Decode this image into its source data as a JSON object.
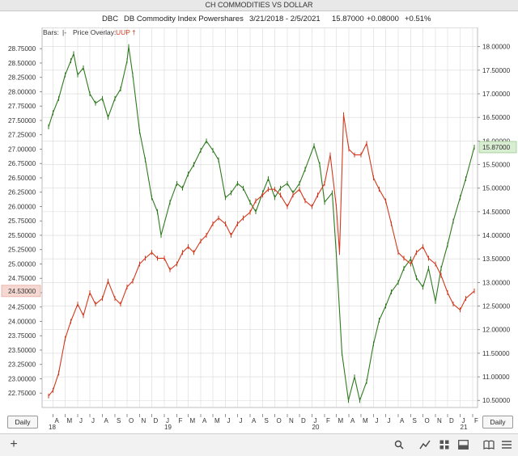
{
  "window": {
    "title": "CH COMMODITIES VS DOLLAR"
  },
  "header": {
    "symbol": "DBC",
    "name": "DB Commodity Index Powershares",
    "range": "3/21/2018 - 2/5/2021",
    "last": "15.87000",
    "change": "+0.08000",
    "pct": "+0.51%"
  },
  "legend": {
    "bars_label": "Bars:",
    "bars_glyph": "|-",
    "overlay_label": "Price Overlay:",
    "overlay_symbol": "UUP",
    "overlay_glyph": "†"
  },
  "controls": {
    "period_left": "Daily",
    "period_right": "Daily"
  },
  "colors": {
    "dbc": "#2f7a1f",
    "uup": "#d23a1e",
    "grid": "#d9d9d9"
  },
  "chart_data": {
    "type": "line",
    "x_start": "2018-03-21",
    "x_end": "2021-02-05",
    "series": [
      {
        "name": "DBC",
        "axis": "right",
        "points": [
          [
            "2018-03-21",
            16.3
          ],
          [
            "2018-04-01",
            16.6
          ],
          [
            "2018-04-15",
            16.9
          ],
          [
            "2018-05-01",
            17.4
          ],
          [
            "2018-05-15",
            17.7
          ],
          [
            "2018-05-22",
            17.85
          ],
          [
            "2018-06-01",
            17.4
          ],
          [
            "2018-06-15",
            17.55
          ],
          [
            "2018-07-01",
            17.0
          ],
          [
            "2018-07-15",
            16.8
          ],
          [
            "2018-08-01",
            16.9
          ],
          [
            "2018-08-15",
            16.5
          ],
          [
            "2018-09-01",
            16.9
          ],
          [
            "2018-09-15",
            17.1
          ],
          [
            "2018-10-01",
            17.7
          ],
          [
            "2018-10-05",
            18.0
          ],
          [
            "2018-10-15",
            17.4
          ],
          [
            "2018-11-01",
            16.2
          ],
          [
            "2018-11-15",
            15.6
          ],
          [
            "2018-12-01",
            14.8
          ],
          [
            "2018-12-15",
            14.5
          ],
          [
            "2018-12-24",
            14.0
          ],
          [
            "2019-01-15",
            14.7
          ],
          [
            "2019-02-01",
            15.1
          ],
          [
            "2019-02-15",
            15.0
          ],
          [
            "2019-03-01",
            15.3
          ],
          [
            "2019-03-15",
            15.5
          ],
          [
            "2019-04-01",
            15.8
          ],
          [
            "2019-04-15",
            16.0
          ],
          [
            "2019-05-01",
            15.8
          ],
          [
            "2019-05-15",
            15.6
          ],
          [
            "2019-06-01",
            14.8
          ],
          [
            "2019-06-15",
            14.9
          ],
          [
            "2019-07-01",
            15.1
          ],
          [
            "2019-07-15",
            15.0
          ],
          [
            "2019-08-01",
            14.7
          ],
          [
            "2019-08-15",
            14.5
          ],
          [
            "2019-09-01",
            14.9
          ],
          [
            "2019-09-15",
            15.2
          ],
          [
            "2019-10-01",
            14.8
          ],
          [
            "2019-10-15",
            15.0
          ],
          [
            "2019-11-01",
            15.1
          ],
          [
            "2019-11-15",
            14.9
          ],
          [
            "2019-12-01",
            15.1
          ],
          [
            "2019-12-15",
            15.4
          ],
          [
            "2020-01-06",
            15.9
          ],
          [
            "2020-01-20",
            15.5
          ],
          [
            "2020-02-01",
            14.7
          ],
          [
            "2020-02-20",
            14.9
          ],
          [
            "2020-03-01",
            13.6
          ],
          [
            "2020-03-15",
            11.5
          ],
          [
            "2020-03-31",
            10.5
          ],
          [
            "2020-04-15",
            11.0
          ],
          [
            "2020-04-28",
            10.5
          ],
          [
            "2020-05-15",
            10.9
          ],
          [
            "2020-06-01",
            11.7
          ],
          [
            "2020-06-15",
            12.2
          ],
          [
            "2020-07-01",
            12.5
          ],
          [
            "2020-07-15",
            12.8
          ],
          [
            "2020-08-01",
            13.0
          ],
          [
            "2020-08-15",
            13.3
          ],
          [
            "2020-09-01",
            13.5
          ],
          [
            "2020-09-15",
            13.1
          ],
          [
            "2020-10-01",
            12.9
          ],
          [
            "2020-10-15",
            13.3
          ],
          [
            "2020-11-01",
            12.6
          ],
          [
            "2020-11-15",
            13.3
          ],
          [
            "2020-12-01",
            13.8
          ],
          [
            "2020-12-15",
            14.3
          ],
          [
            "2021-01-01",
            14.8
          ],
          [
            "2021-01-15",
            15.2
          ],
          [
            "2021-02-05",
            15.87
          ]
        ]
      },
      {
        "name": "UUP",
        "axis": "left",
        "points": [
          [
            "2018-03-21",
            22.7
          ],
          [
            "2018-04-01",
            22.8
          ],
          [
            "2018-04-15",
            23.1
          ],
          [
            "2018-05-01",
            23.7
          ],
          [
            "2018-05-15",
            24.0
          ],
          [
            "2018-06-01",
            24.3
          ],
          [
            "2018-06-15",
            24.1
          ],
          [
            "2018-07-01",
            24.5
          ],
          [
            "2018-07-15",
            24.3
          ],
          [
            "2018-08-01",
            24.4
          ],
          [
            "2018-08-15",
            24.7
          ],
          [
            "2018-09-01",
            24.4
          ],
          [
            "2018-09-15",
            24.3
          ],
          [
            "2018-10-01",
            24.6
          ],
          [
            "2018-10-15",
            24.7
          ],
          [
            "2018-11-01",
            25.0
          ],
          [
            "2018-11-15",
            25.1
          ],
          [
            "2018-12-01",
            25.2
          ],
          [
            "2018-12-15",
            25.1
          ],
          [
            "2019-01-01",
            25.1
          ],
          [
            "2019-01-15",
            24.9
          ],
          [
            "2019-02-01",
            25.0
          ],
          [
            "2019-02-15",
            25.2
          ],
          [
            "2019-03-01",
            25.3
          ],
          [
            "2019-03-15",
            25.2
          ],
          [
            "2019-04-01",
            25.4
          ],
          [
            "2019-04-15",
            25.5
          ],
          [
            "2019-05-01",
            25.7
          ],
          [
            "2019-05-15",
            25.8
          ],
          [
            "2019-06-01",
            25.7
          ],
          [
            "2019-06-15",
            25.5
          ],
          [
            "2019-07-01",
            25.7
          ],
          [
            "2019-07-15",
            25.8
          ],
          [
            "2019-08-01",
            25.9
          ],
          [
            "2019-08-15",
            26.1
          ],
          [
            "2019-09-01",
            26.2
          ],
          [
            "2019-09-15",
            26.3
          ],
          [
            "2019-10-01",
            26.3
          ],
          [
            "2019-10-15",
            26.2
          ],
          [
            "2019-11-01",
            26.0
          ],
          [
            "2019-11-15",
            26.2
          ],
          [
            "2019-12-01",
            26.3
          ],
          [
            "2019-12-15",
            26.1
          ],
          [
            "2020-01-01",
            26.0
          ],
          [
            "2020-01-15",
            26.2
          ],
          [
            "2020-02-01",
            26.4
          ],
          [
            "2020-02-15",
            26.9
          ],
          [
            "2020-03-01",
            26.0
          ],
          [
            "2020-03-09",
            25.2
          ],
          [
            "2020-03-19",
            27.6
          ],
          [
            "2020-04-01",
            27.0
          ],
          [
            "2020-04-15",
            26.9
          ],
          [
            "2020-05-01",
            26.9
          ],
          [
            "2020-05-15",
            27.1
          ],
          [
            "2020-06-01",
            26.5
          ],
          [
            "2020-06-15",
            26.3
          ],
          [
            "2020-07-01",
            26.1
          ],
          [
            "2020-07-15",
            25.7
          ],
          [
            "2020-08-01",
            25.2
          ],
          [
            "2020-08-15",
            25.1
          ],
          [
            "2020-09-01",
            25.0
          ],
          [
            "2020-09-15",
            25.2
          ],
          [
            "2020-10-01",
            25.3
          ],
          [
            "2020-10-15",
            25.1
          ],
          [
            "2020-11-01",
            25.0
          ],
          [
            "2020-11-15",
            24.8
          ],
          [
            "2020-12-01",
            24.5
          ],
          [
            "2020-12-15",
            24.3
          ],
          [
            "2021-01-01",
            24.2
          ],
          [
            "2021-01-15",
            24.4
          ],
          [
            "2021-02-05",
            24.53
          ]
        ]
      }
    ],
    "y_left": {
      "min": 22.5,
      "max": 28.95,
      "ticks": [
        "22.75000",
        "23.00000",
        "23.25000",
        "23.50000",
        "23.75000",
        "24.00000",
        "24.25000",
        "24.50000",
        "24.75000",
        "25.00000",
        "25.25000",
        "25.50000",
        "25.75000",
        "26.00000",
        "26.25000",
        "26.50000",
        "26.75000",
        "27.00000",
        "27.25000",
        "27.50000",
        "27.75000",
        "28.00000",
        "28.25000",
        "28.50000",
        "28.75000"
      ],
      "last_value": "24.53000"
    },
    "y_right": {
      "min": 10.35,
      "max": 18.2,
      "ticks": [
        "10.50000",
        "11.00000",
        "11.50000",
        "12.00000",
        "12.50000",
        "13.00000",
        "13.50000",
        "14.00000",
        "14.50000",
        "15.00000",
        "15.50000",
        "16.00000",
        "16.50000",
        "17.00000",
        "17.50000",
        "18.00000"
      ],
      "last_value": "15.87000"
    },
    "x_ticks": [
      {
        "date": "2018-04-01",
        "label": "A"
      },
      {
        "date": "2018-05-01",
        "label": "M"
      },
      {
        "date": "2018-06-01",
        "label": "J"
      },
      {
        "date": "2018-07-01",
        "label": "J"
      },
      {
        "date": "2018-08-01",
        "label": "A"
      },
      {
        "date": "2018-09-01",
        "label": "S"
      },
      {
        "date": "2018-10-01",
        "label": "O"
      },
      {
        "date": "2018-11-01",
        "label": "N"
      },
      {
        "date": "2018-12-01",
        "label": "D"
      },
      {
        "date": "2019-01-01",
        "label": "J"
      },
      {
        "date": "2019-02-01",
        "label": "F"
      },
      {
        "date": "2019-03-01",
        "label": "M"
      },
      {
        "date": "2019-04-01",
        "label": "A"
      },
      {
        "date": "2019-05-01",
        "label": "M"
      },
      {
        "date": "2019-06-01",
        "label": "J"
      },
      {
        "date": "2019-07-01",
        "label": "J"
      },
      {
        "date": "2019-08-01",
        "label": "A"
      },
      {
        "date": "2019-09-01",
        "label": "S"
      },
      {
        "date": "2019-10-01",
        "label": "O"
      },
      {
        "date": "2019-11-01",
        "label": "N"
      },
      {
        "date": "2019-12-01",
        "label": "D"
      },
      {
        "date": "2020-01-01",
        "label": "J"
      },
      {
        "date": "2020-02-01",
        "label": "F"
      },
      {
        "date": "2020-03-01",
        "label": "M"
      },
      {
        "date": "2020-04-01",
        "label": "A"
      },
      {
        "date": "2020-05-01",
        "label": "M"
      },
      {
        "date": "2020-06-01",
        "label": "J"
      },
      {
        "date": "2020-07-01",
        "label": "J"
      },
      {
        "date": "2020-08-01",
        "label": "A"
      },
      {
        "date": "2020-09-01",
        "label": "S"
      },
      {
        "date": "2020-10-01",
        "label": "O"
      },
      {
        "date": "2020-11-01",
        "label": "N"
      },
      {
        "date": "2020-12-01",
        "label": "D"
      },
      {
        "date": "2021-01-01",
        "label": "J"
      },
      {
        "date": "2021-02-01",
        "label": "F"
      }
    ],
    "year_labels": [
      {
        "date": "2018-03-21",
        "label": "18"
      },
      {
        "date": "2019-01-01",
        "label": "19"
      },
      {
        "date": "2020-01-01",
        "label": "20"
      },
      {
        "date": "2021-01-01",
        "label": "21"
      }
    ],
    "grid": true
  }
}
